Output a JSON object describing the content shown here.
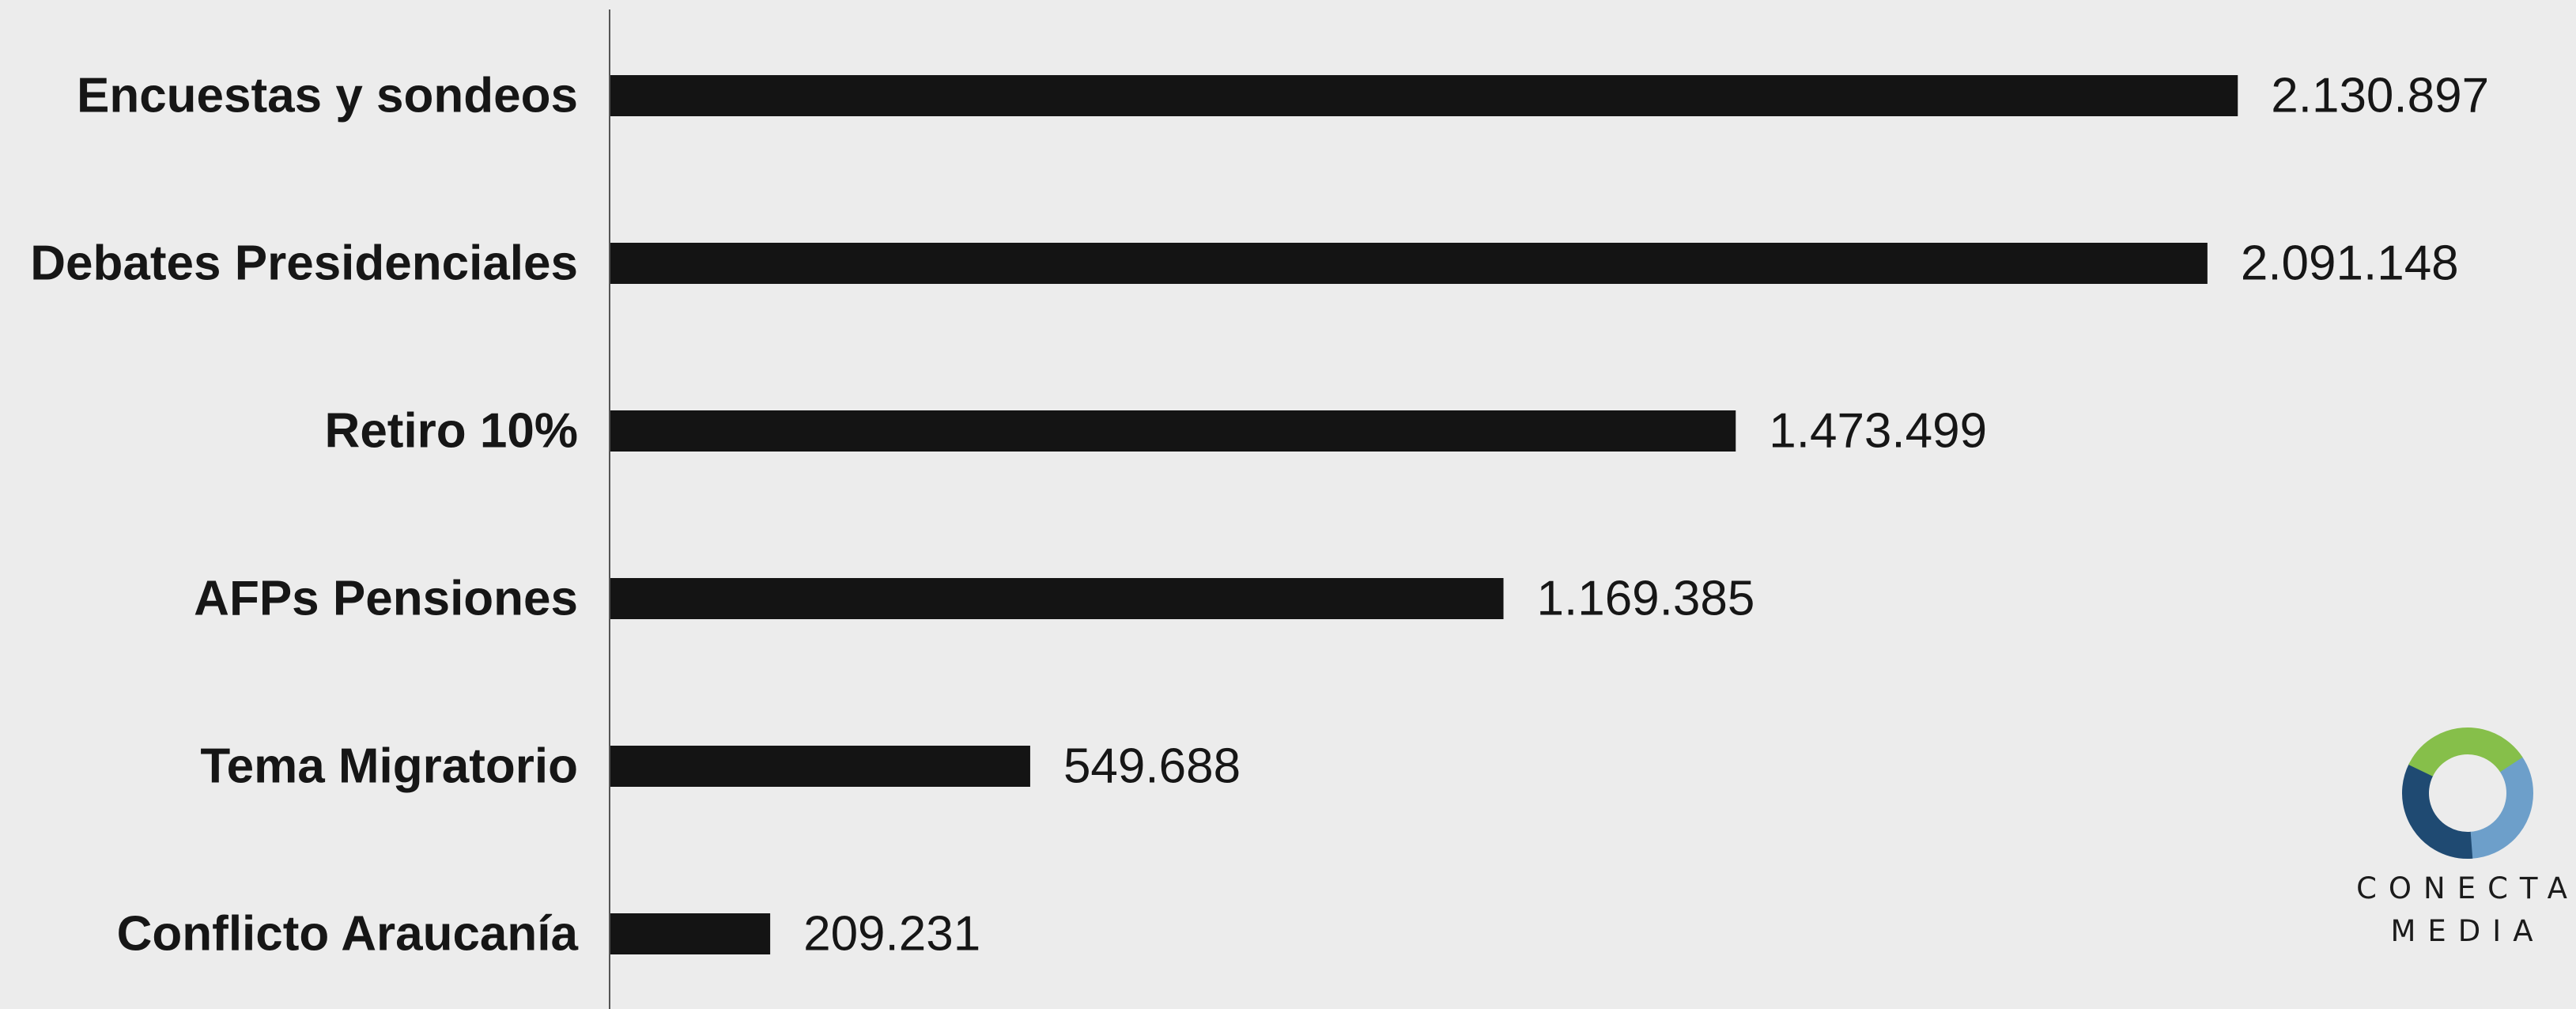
{
  "chart_data": {
    "type": "bar",
    "orientation": "horizontal",
    "categories": [
      "Encuestas y sondeos",
      "Debates Presidenciales",
      "Retiro 10%",
      "AFPs Pensiones",
      "Tema Migratorio",
      "Conflicto Araucanía"
    ],
    "values": [
      2130897,
      2091148,
      1473499,
      1169385,
      549688,
      209231
    ],
    "value_labels": [
      "2.130.897",
      "2.091.148",
      "1.473.499",
      "1.169.385",
      "549.688",
      "209.231"
    ],
    "title": "",
    "xlabel": "",
    "ylabel": "",
    "xlim": [
      0,
      2200000
    ],
    "grid": false,
    "bar_color": "#141414",
    "axis_color": "#555555",
    "background": "#ececec"
  },
  "logo": {
    "line1": "CONECTA",
    "line2": "MEDIA",
    "colors": {
      "green": "#86bf4a",
      "light_blue": "#6d9fca",
      "dark_blue": "#1f4a72"
    }
  }
}
